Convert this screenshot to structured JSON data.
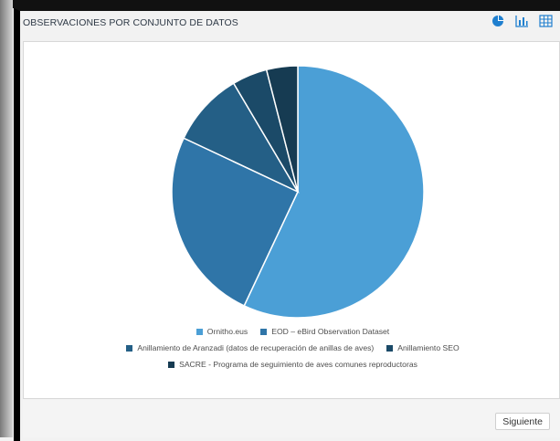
{
  "panel": {
    "title": "OBSERVACIONES POR CONJUNTO DE DATOS",
    "next_label": "Siguiente",
    "toolbar": {
      "pie_icon": "pie-chart-icon",
      "bar_icon": "bar-chart-icon",
      "table_icon": "table-icon"
    }
  },
  "chart_data": {
    "type": "pie",
    "series": [
      {
        "name": "Ornitho.eus",
        "value": 57.0,
        "color": "#4b9fd6"
      },
      {
        "name": "EOD – eBird Observation Dataset",
        "value": 25.0,
        "color": "#2f75a8"
      },
      {
        "name": "Anillamiento de Aranzadi (datos de recuperación de anillas de aves)",
        "value": 9.5,
        "color": "#245f86"
      },
      {
        "name": "Anillamiento SEO",
        "value": 4.5,
        "color": "#1b4a68"
      },
      {
        "name": "SACRE - Programa de seguimiento de aves comunes reproductoras",
        "value": 4.0,
        "color": "#163b52"
      }
    ],
    "title": "",
    "legend": "bottom",
    "grid": false
  },
  "colors": {
    "accent": "#1e7fd0",
    "toolbar_icon": "#1f7fcf",
    "title_text": "#2e3946",
    "background": "#f2f2f2"
  }
}
